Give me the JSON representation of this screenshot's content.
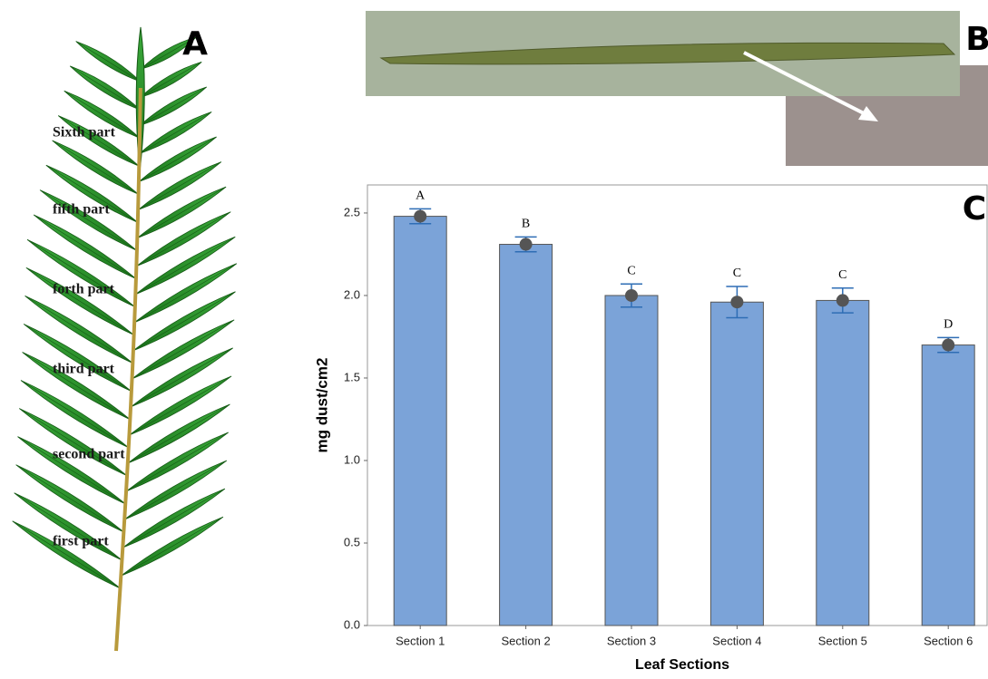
{
  "panel_labels": [
    "A",
    "B",
    "C"
  ],
  "leaf_parts": [
    "Sixth part",
    "fifth part",
    "forth part",
    "third part",
    "second part",
    "first part"
  ],
  "chart_data": {
    "type": "bar",
    "x_label": "Leaf Sections",
    "y_label": "mg dust/cm2",
    "categories": [
      "Section 1",
      "Section 2",
      "Section 3",
      "Section 4",
      "Section 5",
      "Section 6"
    ],
    "values": [
      2.48,
      2.31,
      2.0,
      1.96,
      1.97,
      1.7
    ],
    "errors": [
      0.045,
      0.045,
      0.07,
      0.095,
      0.075,
      0.045
    ],
    "annotations": [
      "A",
      "B",
      "C",
      "C",
      "C",
      "D"
    ],
    "color": "#7ba3d8",
    "error_color": "#2e6db5",
    "point_color": "#555555",
    "ylim": [
      0,
      2.67
    ],
    "yticks": [
      {
        "value": 0,
        "label": "0.0"
      },
      0.5,
      {
        "value": 1,
        "label": "1.0"
      },
      1.5,
      {
        "value": 2,
        "label": "2.0"
      },
      2.5
    ]
  }
}
